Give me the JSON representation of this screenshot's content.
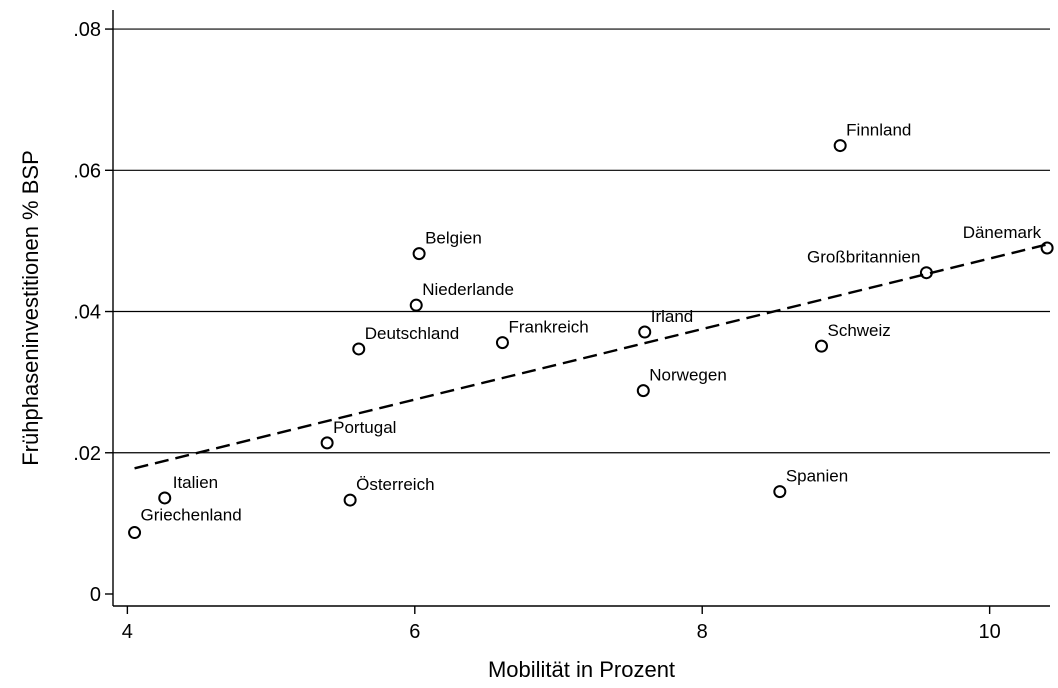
{
  "chart_data": {
    "type": "scatter",
    "title": "",
    "xlabel": "Mobilität in Prozent",
    "ylabel": "Frühphaseninvestitionen % BSP",
    "xlim": [
      3.9,
      10.42
    ],
    "ylim": [
      -0.0017,
      0.0827
    ],
    "x_ticks": [
      4,
      6,
      8,
      10
    ],
    "x_tick_labels": [
      "4",
      "6",
      "8",
      "10"
    ],
    "y_ticks": [
      0,
      0.02,
      0.04,
      0.06,
      0.08
    ],
    "y_tick_labels": [
      "0",
      ".02",
      ".04",
      ".06",
      ".08"
    ],
    "grid": "horizontal",
    "legend": "none",
    "points": [
      {
        "label": "Griechenland",
        "x": 4.05,
        "y": 0.0087
      },
      {
        "label": "Italien",
        "x": 4.26,
        "y": 0.0136
      },
      {
        "label": "Portugal",
        "x": 5.39,
        "y": 0.0214
      },
      {
        "label": "Österreich",
        "x": 5.55,
        "y": 0.0133
      },
      {
        "label": "Deutschland",
        "x": 5.61,
        "y": 0.0347
      },
      {
        "label": "Niederlande",
        "x": 6.01,
        "y": 0.0409
      },
      {
        "label": "Belgien",
        "x": 6.03,
        "y": 0.0482
      },
      {
        "label": "Frankreich",
        "x": 6.61,
        "y": 0.0356
      },
      {
        "label": "Irland",
        "x": 7.6,
        "y": 0.0371
      },
      {
        "label": "Norwegen",
        "x": 7.59,
        "y": 0.0288
      },
      {
        "label": "Spanien",
        "x": 8.54,
        "y": 0.0145
      },
      {
        "label": "Schweiz",
        "x": 8.83,
        "y": 0.0351
      },
      {
        "label": "Finnland",
        "x": 8.96,
        "y": 0.0635
      },
      {
        "label": "Großbritannien",
        "x": 9.56,
        "y": 0.0455
      },
      {
        "label": "Dänemark",
        "x": 10.4,
        "y": 0.049
      }
    ],
    "fit_line": {
      "style": "dashed",
      "x": [
        4.05,
        10.4
      ],
      "y": [
        0.0178,
        0.0495
      ]
    },
    "colors": {
      "marker": "#000000",
      "fit": "#000000",
      "grid": "#000000",
      "background": "#ffffff"
    }
  }
}
